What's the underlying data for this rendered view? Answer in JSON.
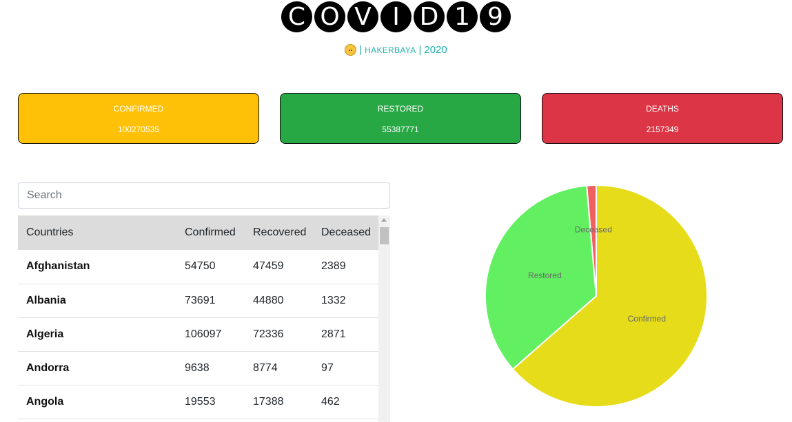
{
  "header": {
    "title_letters": [
      "C",
      "O",
      "V",
      "I",
      "D",
      "1",
      "9"
    ],
    "sep1": "|",
    "author": "HAKERBAYA",
    "sep2": "|",
    "year": "2020"
  },
  "stats": {
    "confirmed": {
      "label": "CONFIRMED",
      "value": "100270535",
      "color": "#ffc107"
    },
    "restored": {
      "label": "RESTORED",
      "value": "55387771",
      "color": "#28a745"
    },
    "deaths": {
      "label": "DEATHS",
      "value": "2157349",
      "color": "#dc3545"
    }
  },
  "search": {
    "placeholder": "Search",
    "value": ""
  },
  "table": {
    "headers": [
      "Countries",
      "Confirmed",
      "Recovered",
      "Deceased"
    ],
    "rows": [
      [
        "Afghanistan",
        "54750",
        "47459",
        "2389"
      ],
      [
        "Albania",
        "73691",
        "44880",
        "1332"
      ],
      [
        "Algeria",
        "106097",
        "72336",
        "2871"
      ],
      [
        "Andorra",
        "9638",
        "8774",
        "97"
      ],
      [
        "Angola",
        "19553",
        "17388",
        "462"
      ]
    ]
  },
  "chart_data": {
    "type": "pie",
    "categories": [
      "Confirmed",
      "Restored",
      "Deceased"
    ],
    "values": [
      100270535,
      55387771,
      2157349
    ],
    "colors": [
      "#e6dc1a",
      "#62f062",
      "#f06060"
    ]
  }
}
